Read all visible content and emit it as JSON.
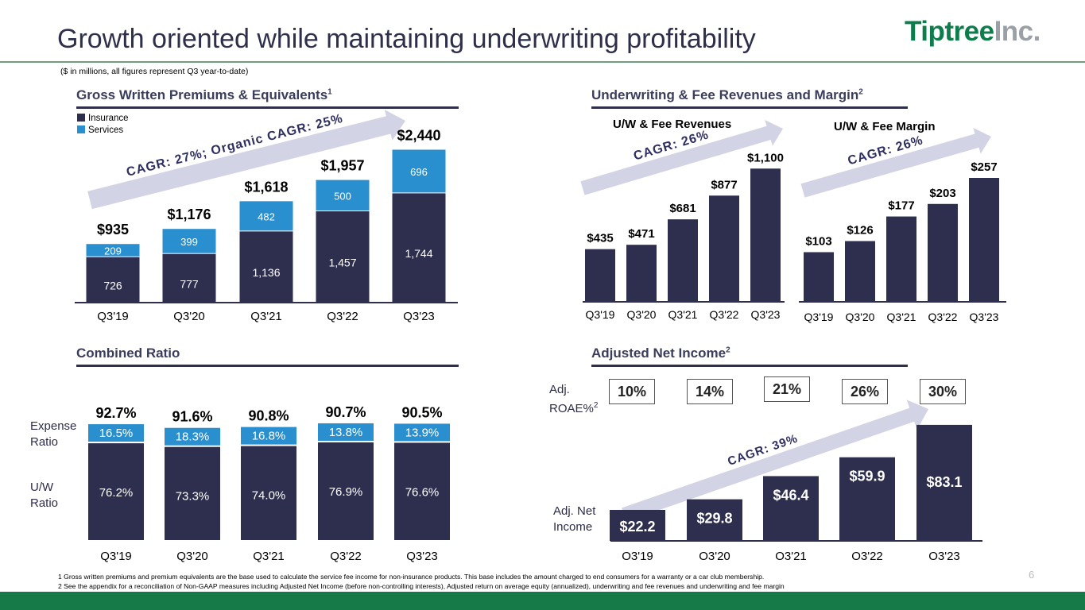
{
  "header": {
    "title": "Growth oriented while maintaining underwriting profitability",
    "logo_main": "Tiptree",
    "logo_suffix": "Inc.",
    "subtitle": "($ in millions, all figures represent Q3 year-to-date)"
  },
  "colors": {
    "dark": "#2e2f4e",
    "light": "#2a8fcf",
    "arrow": "#d3d3e6",
    "brand": "#167a48"
  },
  "sections": {
    "gwp": {
      "title": "Gross Written Premiums & Equivalents",
      "sup": "1"
    },
    "uw": {
      "title": "Underwriting & Fee Revenues and Margin",
      "sup": "2"
    },
    "cr": {
      "title": "Combined Ratio"
    },
    "ni": {
      "title": "Adjusted Net Income",
      "sup": "2"
    }
  },
  "legend": {
    "insurance": "Insurance",
    "services": "Services"
  },
  "cr_labels": {
    "expense": "Expense Ratio",
    "uw": "U/W Ratio"
  },
  "ni_labels": {
    "roae": "Adj. ROAE%",
    "roae_sup": "2",
    "net_income": "Adj. Net Income"
  },
  "roae_values": [
    "10%",
    "14%",
    "21%",
    "26%",
    "30%"
  ],
  "chart_data": [
    {
      "id": "gwp",
      "type": "bar",
      "stacked": true,
      "categories": [
        "Q3'19",
        "Q3'20",
        "Q3'21",
        "Q3'22",
        "Q3'23"
      ],
      "series": [
        {
          "name": "Insurance",
          "values": [
            726,
            777,
            1136,
            1457,
            1744
          ],
          "labels": [
            "726",
            "777",
            "1,136",
            "1,457",
            "1,744"
          ]
        },
        {
          "name": "Services",
          "values": [
            209,
            399,
            482,
            500,
            696
          ],
          "labels": [
            "209",
            "399",
            "482",
            "500",
            "696"
          ]
        }
      ],
      "totals": [
        "$935",
        "$1,176",
        "$1,618",
        "$1,957",
        "$2,440"
      ],
      "ylim": [
        0,
        2800
      ],
      "annotation": "CAGR: 27%; Organic CAGR: 25%"
    },
    {
      "id": "uw_rev",
      "type": "bar",
      "title": "U/W & Fee Revenues",
      "categories": [
        "Q3'19",
        "Q3'20",
        "Q3'21",
        "Q3'22",
        "Q3'23"
      ],
      "values": [
        435,
        471,
        681,
        877,
        1100
      ],
      "labels": [
        "$435",
        "$471",
        "$681",
        "$877",
        "$1,100"
      ],
      "ylim": [
        0,
        1500
      ],
      "annotation": "CAGR: 26%"
    },
    {
      "id": "uw_margin",
      "type": "bar",
      "title": "U/W & Fee Margin",
      "categories": [
        "Q3'19",
        "Q3'20",
        "Q3'21",
        "Q3'22",
        "Q3'23"
      ],
      "values": [
        103,
        126,
        177,
        203,
        257
      ],
      "labels": [
        "$103",
        "$126",
        "$177",
        "$203",
        "$257"
      ],
      "ylim": [
        0,
        350
      ],
      "annotation": "CAGR: 26%"
    },
    {
      "id": "combined_ratio",
      "type": "bar",
      "stacked": true,
      "categories": [
        "Q3'19",
        "Q3'20",
        "Q3'21",
        "Q3'22",
        "Q3'23"
      ],
      "series": [
        {
          "name": "U/W Ratio",
          "values": [
            76.2,
            73.3,
            74.0,
            76.9,
            76.6
          ],
          "labels": [
            "76.2%",
            "73.3%",
            "74.0%",
            "76.9%",
            "76.6%"
          ]
        },
        {
          "name": "Expense Ratio",
          "values": [
            16.5,
            18.3,
            16.8,
            13.8,
            13.9
          ],
          "labels": [
            "16.5%",
            "18.3%",
            "16.8%",
            "13.8%",
            "13.9%"
          ]
        }
      ],
      "totals": [
        "92.7%",
        "91.6%",
        "90.8%",
        "90.7%",
        "90.5%"
      ],
      "ylim": [
        0,
        100
      ]
    },
    {
      "id": "adj_net_income",
      "type": "bar",
      "categories": [
        "O3'19",
        "O3'20",
        "O3'21",
        "O3'22",
        "O3'23"
      ],
      "values": [
        22.2,
        29.8,
        46.4,
        59.9,
        83.1
      ],
      "labels": [
        "$22.2",
        "$29.8",
        "$46.4",
        "$59.9",
        "$83.1"
      ],
      "ylim": [
        0,
        100
      ],
      "annotation": "CAGR: 39%"
    }
  ],
  "footnotes": [
    "1 Gross written premiums and premium equivalents are the base used to calculate the service fee income for non-insurance products. This base includes the amount charged to end consumers for a warranty or a car club membership.",
    "2 See the appendix for a reconciliation of Non-GAAP measures including Adjusted Net Income (before non-controlling interests), Adjusted return on average equity (annualized), underwriting and fee revenues and underwriting and fee margin"
  ],
  "page_number": "6"
}
